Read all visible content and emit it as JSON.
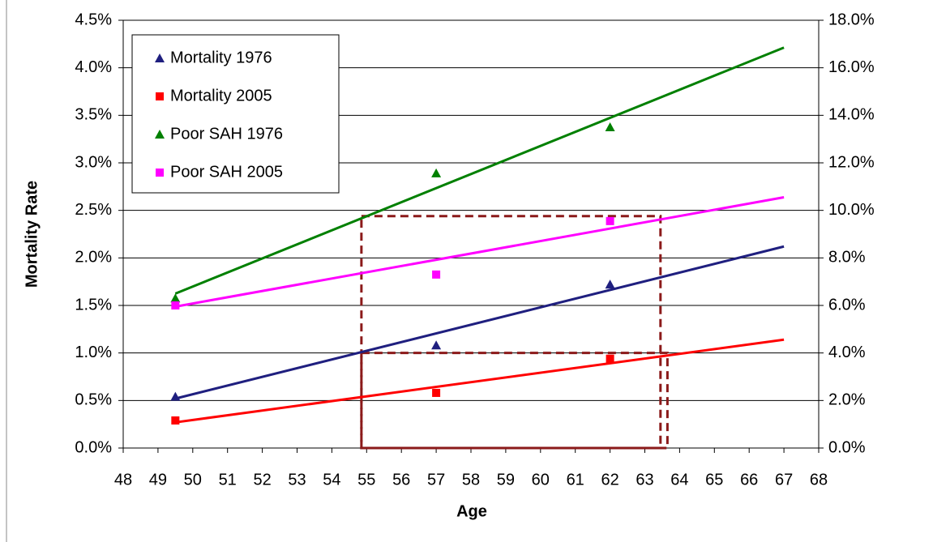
{
  "chart_data": {
    "type": "scatter",
    "xlabel": "Age",
    "ylabel": "Mortality Rate",
    "xlim": [
      48,
      68
    ],
    "xticks": [
      48,
      49,
      50,
      51,
      52,
      53,
      54,
      55,
      56,
      57,
      58,
      59,
      60,
      61,
      62,
      63,
      64,
      65,
      66,
      67,
      68
    ],
    "ylim": [
      0,
      4.5
    ],
    "yticks": [
      {
        "value": 0,
        "label": "0.0%"
      },
      {
        "value": 0.5,
        "label": "0.5%"
      },
      {
        "value": 1,
        "label": "1.0%"
      },
      {
        "value": 1.5,
        "label": "1.5%"
      },
      {
        "value": 2,
        "label": "2.0%"
      },
      {
        "value": 2.5,
        "label": "2.5%"
      },
      {
        "value": 3,
        "label": "3.0%"
      },
      {
        "value": 3.5,
        "label": "3.5%"
      },
      {
        "value": 4,
        "label": "4.0%"
      },
      {
        "value": 4.5,
        "label": "4.5%"
      }
    ],
    "y2lim": [
      0,
      18
    ],
    "y2ticks": [
      {
        "value": 0,
        "label": "0.0%"
      },
      {
        "value": 2,
        "label": "2.0%"
      },
      {
        "value": 4,
        "label": "4.0%"
      },
      {
        "value": 6,
        "label": "6.0%"
      },
      {
        "value": 8,
        "label": "8.0%"
      },
      {
        "value": 10,
        "label": "10.0%"
      },
      {
        "value": 12,
        "label": "12.0%"
      },
      {
        "value": 14,
        "label": "14.0%"
      },
      {
        "value": 16,
        "label": "16.0%"
      },
      {
        "value": 18,
        "label": "18.0%"
      }
    ],
    "grid": true,
    "legend": "upper left",
    "series": [
      {
        "name": "Mortality 1976",
        "color": "#1f1f7f",
        "marker": "triangle",
        "x": [
          49.5,
          57,
          62
        ],
        "values": [
          0.54,
          1.08,
          1.72
        ]
      },
      {
        "name": "Mortality 2005",
        "color": "#ff0000",
        "marker": "square",
        "x": [
          49.5,
          57,
          62
        ],
        "values": [
          0.29,
          0.58,
          0.94
        ]
      },
      {
        "name": "Poor SAH 1976",
        "color": "#008000",
        "marker": "triangle",
        "axis": "y2",
        "x": [
          49.5,
          57,
          62
        ],
        "values": [
          6.3,
          11.56,
          13.5
        ]
      },
      {
        "name": "Poor SAH 2005",
        "color": "#ff00ff",
        "marker": "square",
        "axis": "y2",
        "x": [
          49.5,
          57,
          62
        ],
        "values": [
          6.0,
          7.3,
          9.55
        ]
      }
    ],
    "trend_lines": [
      {
        "color": "#1f1f7f",
        "x": [
          49.5,
          67
        ],
        "values": [
          0.52,
          2.12
        ]
      },
      {
        "color": "#ff0000",
        "x": [
          49.5,
          67
        ],
        "values": [
          0.27,
          1.14
        ]
      },
      {
        "color": "#008000",
        "axis": "y2",
        "x": [
          49.5,
          67
        ],
        "values": [
          6.5,
          16.85
        ]
      },
      {
        "color": "#ff00ff",
        "axis": "y2",
        "x": [
          49.5,
          67
        ],
        "values": [
          5.95,
          10.55
        ]
      }
    ],
    "dashed_boxes": [
      {
        "color": "#8b1a1a",
        "x": [
          54.85,
          63.45
        ],
        "y": [
          0,
          2.44
        ]
      },
      {
        "color": "#8b1a1a",
        "x": [
          54.85,
          63.65
        ],
        "y": [
          0,
          1.0
        ]
      }
    ]
  }
}
